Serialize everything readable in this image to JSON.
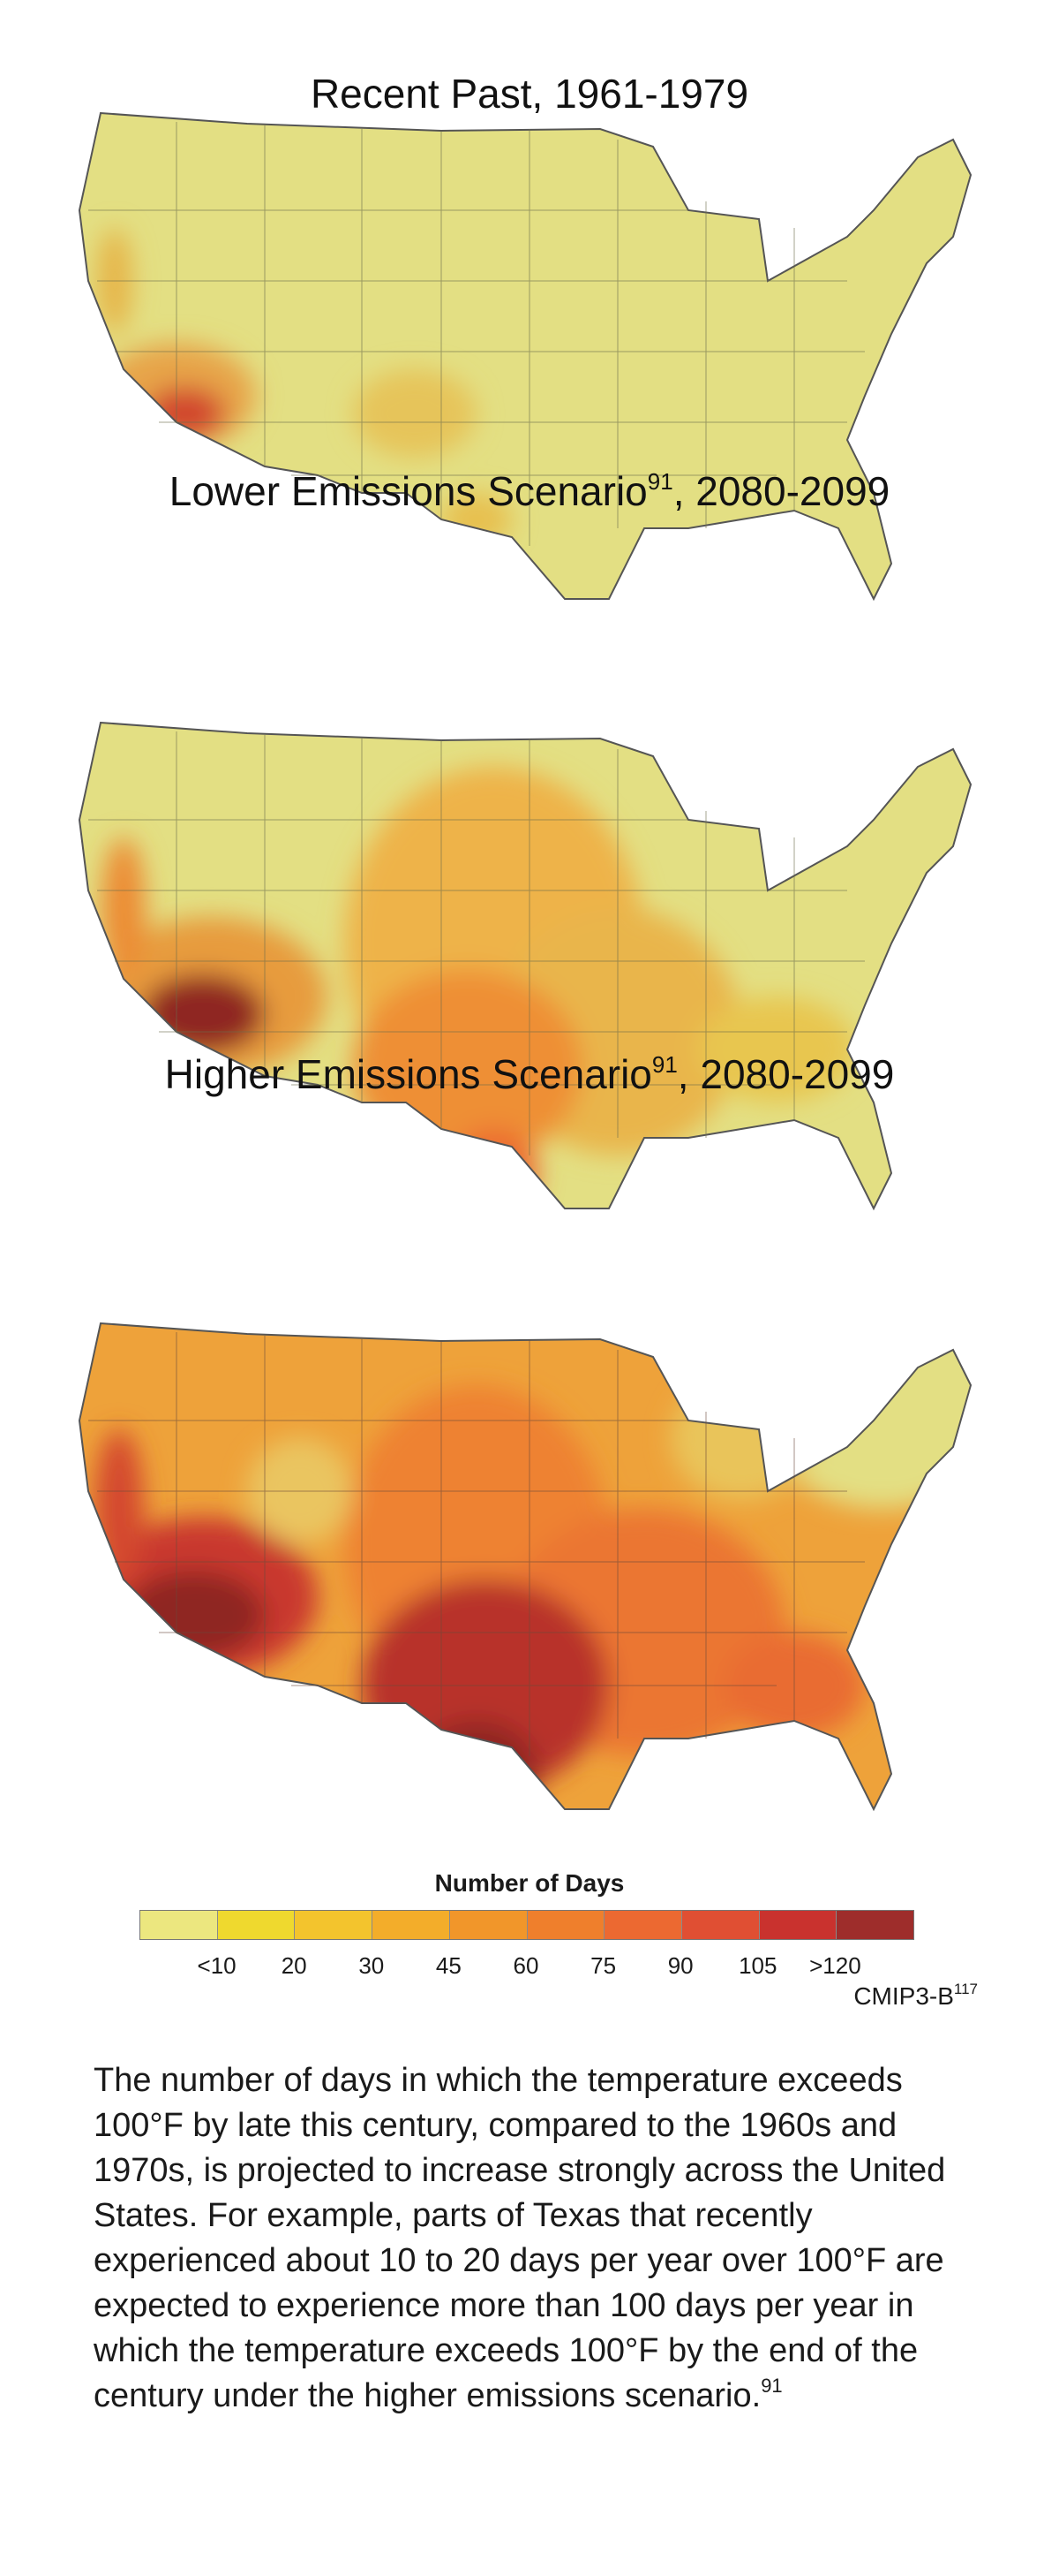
{
  "maps": [
    {
      "id": "recent",
      "title": "Recent Past, 1961-1979",
      "title_ref": "",
      "base_color": "#e3df83",
      "hot_spots": [
        {
          "region": "southwest-desert",
          "level": "75-105"
        },
        {
          "region": "central-valley-ca",
          "level": "20-45"
        },
        {
          "region": "west-texas",
          "level": "10-30"
        },
        {
          "region": "south-texas",
          "level": "10-30"
        }
      ]
    },
    {
      "id": "lower",
      "title": "Lower Emissions Scenario",
      "title_ref": "91",
      "title_suffix": ", 2080-2099",
      "base_color": "#e3df83",
      "hot_spots": [
        {
          "region": "southwest-desert",
          "level": ">120"
        },
        {
          "region": "texas",
          "level": "45-90"
        },
        {
          "region": "great-plains",
          "level": "20-45"
        },
        {
          "region": "southeast",
          "level": "10-30"
        }
      ]
    },
    {
      "id": "higher",
      "title": "Higher Emissions Scenario",
      "title_ref": "91",
      "title_suffix": ", 2080-2099",
      "base_color": "#e3df83",
      "hot_spots": [
        {
          "region": "southwest-desert",
          "level": ">120"
        },
        {
          "region": "texas",
          "level": "105->120"
        },
        {
          "region": "south-central",
          "level": "60-90"
        },
        {
          "region": "northern-plains",
          "level": "30-60"
        }
      ]
    }
  ],
  "legend": {
    "title": "Number of Days",
    "colors": [
      "#ece77f",
      "#efd92e",
      "#f3c42d",
      "#f3ad2a",
      "#f1962a",
      "#ef7f2c",
      "#ec6931",
      "#e04f33",
      "#c9322e",
      "#9e2d2b"
    ],
    "labels": [
      "<10",
      "20",
      "30",
      "45",
      "60",
      "75",
      "90",
      "105",
      ">120"
    ]
  },
  "source": {
    "label": "CMIP3-B",
    "ref": "117"
  },
  "caption": {
    "text": "The number of days in which the temperature exceeds 100°F by late this century, compared to the 1960s and 1970s, is projected to increase strongly across the United States. For example, parts of Texas that recently experienced about 10 to 20 days per year over 100°F are expected to experience more than 100 days per year in which the temperature exceeds 100°F by the end of the century under the higher emissions scenario.",
    "ref": "91"
  }
}
